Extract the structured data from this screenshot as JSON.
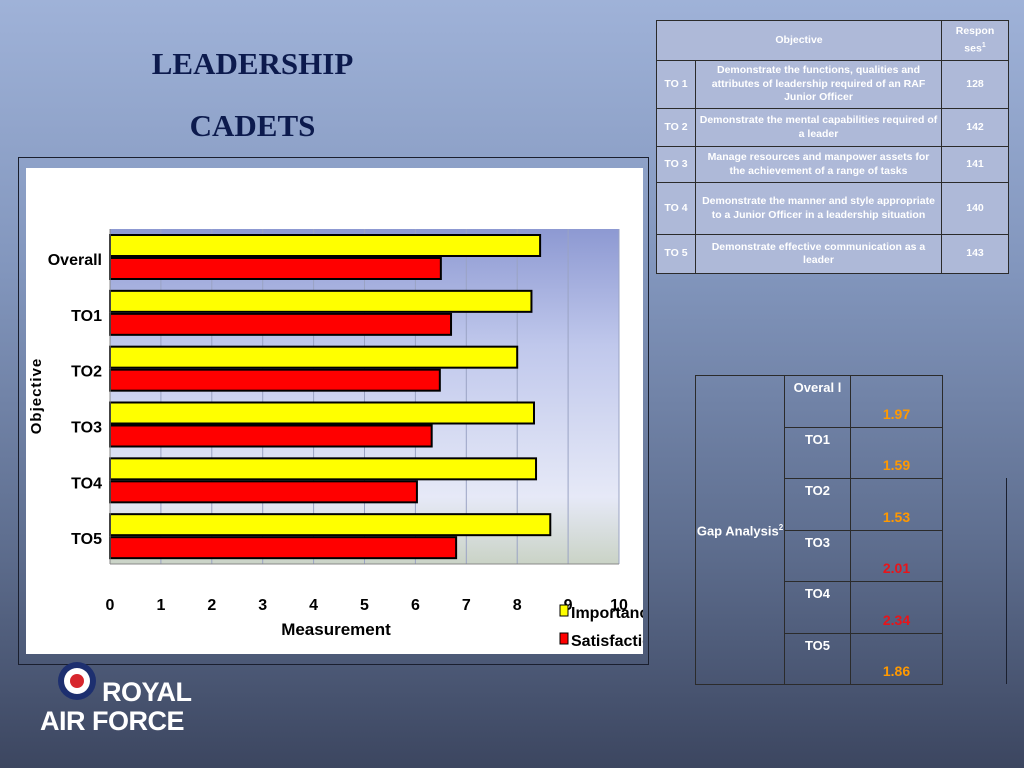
{
  "titles": {
    "line1": "LEADERSHIP",
    "line2": "CADETS"
  },
  "objectives_table": {
    "header_objective": "Objective",
    "header_responses": "Respon ses",
    "header_responses_sup": "1",
    "rows": [
      {
        "id": "TO 1",
        "text": "Demonstrate the functions, qualities and attributes of leadership required of an RAF Junior Officer",
        "responses": "128"
      },
      {
        "id": "TO 2",
        "text": "Demonstrate the mental capabilities required of a leader",
        "responses": "142"
      },
      {
        "id": "TO 3",
        "text": "Manage resources and manpower assets for the achievement of a range of tasks",
        "responses": "141"
      },
      {
        "id": "TO 4",
        "text": "Demonstrate the manner and style appropriate to a Junior Officer in a leadership situation",
        "responses": "140"
      },
      {
        "id": "TO 5",
        "text": "Demonstrate effective communication as a leader",
        "responses": "143"
      }
    ]
  },
  "gap_table": {
    "label": "Gap Analysis",
    "label_sup": "2",
    "rows": [
      {
        "category": "Overal l",
        "value": "1.97",
        "color": "#ff9900"
      },
      {
        "category": "TO1",
        "value": "1.59",
        "color": "#ff9900"
      },
      {
        "category": "TO2",
        "value": "1.53",
        "color": "#ff9900"
      },
      {
        "category": "TO3",
        "value": "2.01",
        "color": "#e8141a"
      },
      {
        "category": "TO4",
        "value": "2.34",
        "color": "#e8141a"
      },
      {
        "category": "TO5",
        "value": "1.86",
        "color": "#ff9900"
      }
    ]
  },
  "chart_data": {
    "type": "bar",
    "orientation": "horizontal",
    "categories": [
      "Overall",
      "TO1",
      "TO2",
      "TO3",
      "TO4",
      "TO5"
    ],
    "series": [
      {
        "name": "Importance",
        "color": "#ffff00",
        "values": [
          8.45,
          8.28,
          8.0,
          8.33,
          8.37,
          8.65
        ]
      },
      {
        "name": "Satisfaction",
        "color": "#ff0000",
        "values": [
          6.5,
          6.7,
          6.48,
          6.32,
          6.03,
          6.8
        ]
      }
    ],
    "xlabel": "Measurement",
    "ylabel": "Objective",
    "xlim": [
      0,
      10
    ],
    "xticks": [
      "0",
      "1",
      "2",
      "3",
      "4",
      "5",
      "6",
      "7",
      "8",
      "9",
      "10"
    ],
    "grid": true,
    "legend_position": "bottom-right"
  },
  "logo": {
    "line1": "ROYAL",
    "line2": "AIR FORCE"
  }
}
